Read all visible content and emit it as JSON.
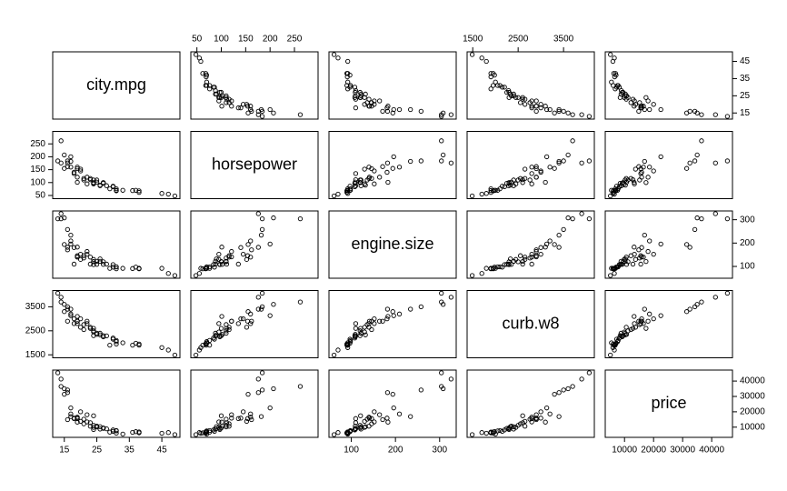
{
  "chart_data": {
    "type": "scatter-matrix",
    "point_color": "#000000",
    "variables": [
      {
        "name": "city.mpg",
        "lim": [
          13,
          49
        ],
        "ticks": [
          15,
          25,
          35,
          45
        ],
        "values": [
          49,
          47,
          38,
          38,
          37,
          36,
          31,
          31,
          31,
          30,
          30,
          28,
          27,
          27,
          26,
          25,
          25,
          24,
          24,
          24,
          23,
          23,
          22,
          21,
          21,
          20,
          19,
          19,
          19,
          19,
          18,
          17,
          17,
          17,
          16,
          16,
          16,
          15,
          15,
          14,
          14,
          13,
          26,
          29,
          33,
          22,
          18,
          20,
          24,
          45
        ]
      },
      {
        "name": "horsepower",
        "lim": [
          48,
          288
        ],
        "ticks": [
          50,
          100,
          150,
          200,
          250
        ],
        "values": [
          48,
          55,
          62,
          68,
          70,
          69,
          68,
          70,
          76,
          84,
          86,
          88,
          97,
          100,
          88,
          110,
          102,
          97,
          110,
          95,
          111,
          116,
          95,
          110,
          116,
          152,
          154,
          160,
          121,
          101,
          140,
          160,
          182,
          200,
          176,
          184,
          162,
          155,
          207,
          262,
          176,
          184,
          90,
          76,
          70,
          121,
          135,
          145,
          100,
          58
        ]
      },
      {
        "name": "engine.size",
        "lim": [
          61,
          326
        ],
        "ticks": [
          100,
          200,
          300
        ],
        "values": [
          61,
          70,
          90,
          92,
          97,
          91,
          90,
          98,
          98,
          108,
          97,
          110,
          109,
          120,
          122,
          122,
          109,
          108,
          120,
          130,
          110,
          140,
          152,
          136,
          146,
          130,
          146,
          140,
          141,
          183,
          181,
          209,
          234,
          196,
          182,
          258,
          171,
          194,
          308,
          304,
          326,
          304,
          132,
          92,
          92,
          164,
          110,
          152,
          121,
          92
        ]
      },
      {
        "name": "curb.w8",
        "lim": [
          1488,
          4066
        ],
        "ticks": [
          1500,
          2500,
          3500
        ],
        "values": [
          1488,
          1700,
          1900,
          1950,
          1980,
          1900,
          1950,
          2050,
          2100,
          2200,
          2150,
          2290,
          2250,
          2300,
          2400,
          2400,
          2350,
          2300,
          2500,
          2450,
          2600,
          2650,
          2800,
          2760,
          2550,
          2650,
          2900,
          2800,
          2900,
          3100,
          3000,
          3200,
          3400,
          3130,
          3400,
          3500,
          2900,
          3300,
          3600,
          3700,
          3900,
          4066,
          2330,
          1900,
          2000,
          2900,
          2800,
          3000,
          2600,
          1800
        ]
      },
      {
        "name": "price",
        "lim": [
          5118,
          45400
        ],
        "ticks": [
          10000,
          20000,
          30000,
          40000
        ],
        "values": [
          5151,
          6500,
          6300,
          6900,
          7100,
          6600,
          6100,
          7600,
          7800,
          8200,
          7300,
          8900,
          9200,
          9500,
          8800,
          10200,
          10700,
          8500,
          11200,
          9900,
          12900,
          10600,
          13400,
          15200,
          12200,
          13800,
          15600,
          16500,
          15900,
          13300,
          15900,
          18600,
          16900,
          22500,
          32500,
          34200,
          14900,
          31400,
          35000,
          36500,
          41300,
          45400,
          10300,
          6800,
          5500,
          18100,
          15600,
          20000,
          17400,
          6000
        ]
      }
    ]
  }
}
